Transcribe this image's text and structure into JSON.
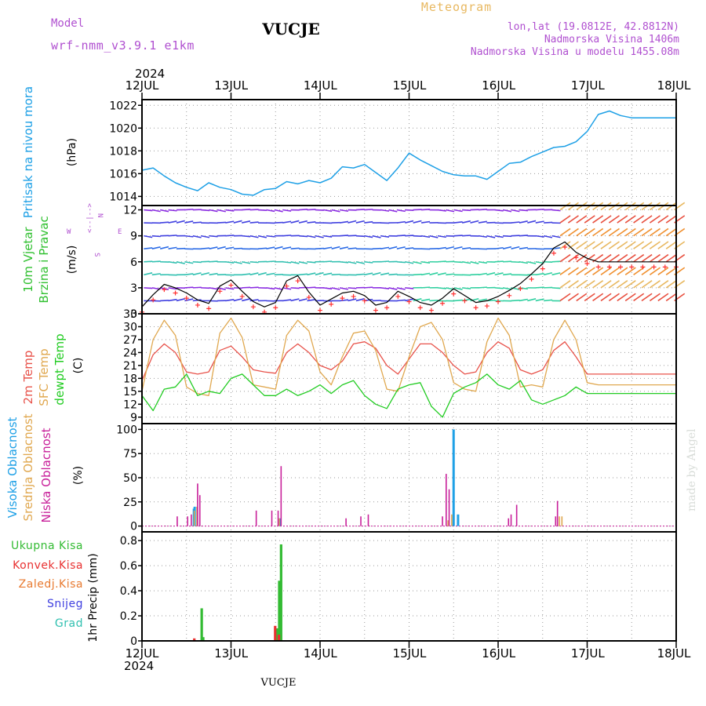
{
  "header": {
    "model_label": "Model",
    "model_name": "wrf-nmm_v3.9.1  e1km",
    "station": "VUCJE",
    "meteogram_title": "Meteogram",
    "lonlat": "lon,lat (19.0812E, 42.8812N)",
    "altitude": "Nadmorska Visina 1406m",
    "model_altitude": "Nadmorska Visina u modelu 1455.08m",
    "year_top": "2024",
    "year_bottom": "2024",
    "footer_station": "VUCJE",
    "credit": "made by Angel"
  },
  "colors": {
    "pressure": "#1ea0e6",
    "wind_speed": "#ff3030",
    "wind_line": "#000000",
    "t2m": "#e8524a",
    "sfc": "#e0a850",
    "dewpt": "#22cc22",
    "cloud_high": "#1ea0e6",
    "cloud_mid": "#e0a850",
    "cloud_low": "#c8209a",
    "precip_total": "#33bb33",
    "precip_conv": "#e83030",
    "precip_frz": "#e87a30",
    "precip_snow": "#4040e0",
    "precip_hail": "#30c0b0",
    "panel_label_wind": "#30c030",
    "purple": "#b050d0"
  },
  "days": [
    "12JUL",
    "13JUL",
    "14JUL",
    "15JUL",
    "16JUL",
    "17JUL",
    "18JUL"
  ],
  "chart_data": [
    {
      "type": "line",
      "name": "pressure",
      "ylabel": "Pritisak na nivou mora",
      "unit": "(hPa)",
      "yticks": [
        "1014",
        "1016",
        "1018",
        "1020",
        "1022"
      ],
      "ylim": [
        1013.2,
        1022.5
      ],
      "x_hours": [
        0,
        3,
        6,
        9,
        12,
        15,
        18,
        21,
        24,
        27,
        30,
        33,
        36,
        39,
        42,
        45,
        48,
        51,
        54,
        57,
        60,
        63,
        66,
        69,
        72,
        75,
        78,
        81,
        84,
        87,
        90,
        93,
        96,
        99,
        102,
        105,
        108,
        111,
        114,
        117,
        120,
        123,
        126,
        129,
        132,
        135,
        138,
        141,
        144
      ],
      "values": [
        1016.3,
        1016.5,
        1015.8,
        1015.2,
        1014.8,
        1014.5,
        1015.2,
        1014.8,
        1014.6,
        1014.2,
        1014.1,
        1014.6,
        1014.7,
        1015.3,
        1015.1,
        1015.4,
        1015.2,
        1015.6,
        1016.6,
        1016.5,
        1016.8,
        1016.1,
        1015.4,
        1016.5,
        1017.8,
        1017.2,
        1016.7,
        1016.2,
        1015.9,
        1015.8,
        1015.8,
        1015.5,
        1016.2,
        1016.9,
        1017.0,
        1017.5,
        1017.9,
        1018.3,
        1018.4,
        1018.8,
        1019.7,
        1021.2,
        1021.5,
        1021.1,
        1020.9,
        1020.9,
        1020.9,
        1020.9,
        1020.9
      ]
    },
    {
      "type": "line",
      "name": "wind",
      "ylabel": "10m Vjetar Brzina i Pravac",
      "unit": "(m/s)",
      "compass": "N S W E",
      "yticks": [
        "0",
        "3",
        "6",
        "9",
        "12"
      ],
      "ylim": [
        0,
        12.5
      ],
      "x_hours": [
        0,
        3,
        6,
        9,
        12,
        15,
        18,
        21,
        24,
        27,
        30,
        33,
        36,
        39,
        42,
        45,
        48,
        51,
        54,
        57,
        60,
        63,
        66,
        69,
        72,
        75,
        78,
        81,
        84,
        87,
        90,
        93,
        96,
        99,
        102,
        105,
        108,
        111,
        114,
        117,
        120,
        123,
        126,
        129,
        132,
        135,
        138,
        141,
        144
      ],
      "series": [
        {
          "values": [
            0.8,
            2.2,
            3.4,
            3.0,
            2.4,
            1.6,
            1.2,
            3.2,
            3.9,
            2.6,
            1.4,
            0.8,
            1.3,
            3.8,
            4.4,
            2.5,
            1.0,
            1.7,
            2.4,
            2.6,
            2.1,
            1.0,
            1.3,
            2.6,
            2.0,
            1.3,
            1.0,
            1.8,
            2.9,
            2.1,
            1.3,
            1.5,
            2.0,
            2.7,
            3.5,
            4.6,
            5.8,
            7.6,
            8.3,
            7.1,
            6.4,
            6.0,
            6.0,
            6.0,
            6.0,
            6.0,
            6.0,
            6.0,
            6.0
          ]
        }
      ]
    },
    {
      "type": "line",
      "name": "temperature",
      "yticks": [
        "9",
        "12",
        "15",
        "18",
        "21",
        "24",
        "27",
        "30",
        "33"
      ],
      "ylim": [
        7.5,
        33
      ],
      "x_hours": [
        0,
        3,
        6,
        9,
        12,
        15,
        18,
        21,
        24,
        27,
        30,
        33,
        36,
        39,
        42,
        45,
        48,
        51,
        54,
        57,
        60,
        63,
        66,
        69,
        72,
        75,
        78,
        81,
        84,
        87,
        90,
        93,
        96,
        99,
        102,
        105,
        108,
        111,
        114,
        117,
        120,
        123,
        126,
        129,
        132,
        135,
        138,
        141,
        144
      ],
      "series": [
        {
          "name": "2m Temp",
          "values": [
            17.5,
            23.5,
            26.0,
            24.0,
            19.5,
            19.0,
            19.5,
            24.5,
            25.5,
            23.0,
            20.0,
            19.5,
            19.2,
            24.0,
            26.0,
            24.0,
            21.0,
            20.0,
            22.0,
            26.0,
            26.5,
            25.0,
            21.0,
            19.0,
            22.5,
            26.0,
            26.0,
            24.0,
            21.0,
            19.0,
            19.5,
            24.0,
            26.5,
            25.0,
            20.0,
            19.0,
            20.0,
            24.5,
            26.5,
            23.0,
            19.0,
            19.0,
            19.0,
            19.0,
            19.0,
            19.0,
            19.0,
            19.0,
            19.0
          ]
        },
        {
          "name": "SFC Temp",
          "values": [
            15.0,
            27.0,
            31.5,
            28.0,
            16.0,
            14.5,
            14.0,
            28.5,
            32.0,
            27.5,
            16.5,
            16.0,
            15.5,
            28.0,
            31.5,
            29.0,
            19.5,
            16.5,
            23.0,
            28.5,
            29.0,
            24.5,
            15.5,
            15.0,
            23.0,
            30.0,
            31.0,
            27.0,
            17.0,
            15.5,
            15.0,
            26.5,
            32.0,
            28.0,
            16.0,
            16.5,
            16.0,
            27.0,
            31.5,
            27.0,
            17.0,
            16.5,
            16.5,
            16.5,
            16.5,
            16.5,
            16.5,
            16.5,
            16.5
          ]
        },
        {
          "name": "dewpt Temp",
          "values": [
            14.0,
            10.5,
            15.5,
            16.0,
            19.0,
            14.0,
            15.0,
            14.5,
            18.0,
            19.0,
            16.5,
            14.0,
            14.0,
            15.5,
            14.0,
            15.0,
            16.5,
            14.5,
            16.5,
            17.5,
            14.0,
            12.0,
            11.0,
            15.5,
            16.5,
            17.0,
            11.5,
            9.0,
            14.5,
            16.0,
            17.0,
            19.0,
            16.5,
            15.5,
            17.5,
            13.0,
            12.0,
            13.0,
            14.0,
            16.0,
            14.5,
            14.5,
            14.5,
            14.5,
            14.5,
            14.5,
            14.5,
            14.5,
            14.5
          ]
        }
      ]
    },
    {
      "type": "bar",
      "name": "clouds",
      "unit": "(%)",
      "yticks": [
        "0",
        "25",
        "50",
        "75",
        "100"
      ],
      "ylim": [
        -6,
        106
      ],
      "series": [
        {
          "name": "Visoka Oblacnost",
          "bars": [
            [
              14.0,
              18
            ],
            [
              14.2,
              20
            ],
            [
              37.2,
              8
            ],
            [
              84.0,
              100
            ],
            [
              85.2,
              12
            ]
          ]
        },
        {
          "name": "Srednja Oblacnost",
          "bars": [
            [
              14.1,
              16
            ],
            [
              14.8,
              20
            ],
            [
              37.0,
              8
            ],
            [
              82.5,
              6
            ],
            [
              83.5,
              12
            ],
            [
              112.5,
              10
            ],
            [
              113.2,
              10
            ]
          ]
        },
        {
          "name": "Niska Oblacnost",
          "bars": [
            [
              9.5,
              10
            ],
            [
              12.3,
              10
            ],
            [
              13.3,
              12
            ],
            [
              15.0,
              44
            ],
            [
              15.6,
              32
            ],
            [
              30.8,
              16
            ],
            [
              35.0,
              16
            ],
            [
              36.7,
              16
            ],
            [
              37.5,
              62
            ],
            [
              55.0,
              8
            ],
            [
              59.0,
              10
            ],
            [
              61.0,
              12
            ],
            [
              81.0,
              10
            ],
            [
              82.0,
              54
            ],
            [
              82.8,
              38
            ],
            [
              98.8,
              8
            ],
            [
              99.5,
              12
            ],
            [
              101.0,
              22
            ],
            [
              111.5,
              10
            ],
            [
              112.0,
              26
            ]
          ]
        }
      ]
    },
    {
      "type": "bar",
      "name": "precipitation",
      "unit": "1hr Precip (mm)",
      "yticks": [
        "0",
        "0.2",
        "0.4",
        "0.6",
        "0.8"
      ],
      "ylim": [
        0,
        0.87
      ],
      "legend": [
        "Ukupna Kisa",
        "Konvek.Kisa",
        "Zaledj.Kisa",
        "Snijeg",
        "Grad"
      ],
      "series": [
        {
          "name": "Ukupna Kisa",
          "bars": [
            [
              16.1,
              0.26
            ],
            [
              16.5,
              0.03
            ],
            [
              36.5,
              0.1
            ],
            [
              37.0,
              0.48
            ],
            [
              37.5,
              0.77
            ]
          ]
        },
        {
          "name": "Konvek.Kisa",
          "bars": [
            [
              14.1,
              0.02
            ],
            [
              35.9,
              0.12
            ],
            [
              36.9,
              0.05
            ]
          ]
        }
      ]
    }
  ]
}
